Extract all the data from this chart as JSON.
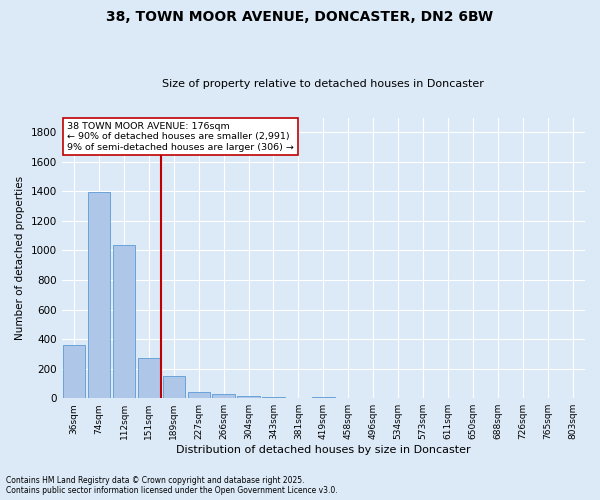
{
  "title_line1": "38, TOWN MOOR AVENUE, DONCASTER, DN2 6BW",
  "title_line2": "Size of property relative to detached houses in Doncaster",
  "xlabel": "Distribution of detached houses by size in Doncaster",
  "ylabel": "Number of detached properties",
  "categories": [
    "36sqm",
    "74sqm",
    "112sqm",
    "151sqm",
    "189sqm",
    "227sqm",
    "266sqm",
    "304sqm",
    "343sqm",
    "381sqm",
    "419sqm",
    "458sqm",
    "496sqm",
    "534sqm",
    "573sqm",
    "611sqm",
    "650sqm",
    "688sqm",
    "726sqm",
    "765sqm",
    "803sqm"
  ],
  "values": [
    360,
    1395,
    1035,
    270,
    148,
    42,
    30,
    18,
    10,
    0,
    10,
    0,
    0,
    0,
    0,
    0,
    0,
    0,
    0,
    0,
    0
  ],
  "bar_color": "#aec6e8",
  "bar_edge_color": "#5b9bd5",
  "vline_color": "#c00000",
  "annotation_text": "38 TOWN MOOR AVENUE: 176sqm\n← 90% of detached houses are smaller (2,991)\n9% of semi-detached houses are larger (306) →",
  "annotation_box_color": "#ffffff",
  "annotation_box_edge": "#c00000",
  "ylim": [
    0,
    1900
  ],
  "yticks": [
    0,
    200,
    400,
    600,
    800,
    1000,
    1200,
    1400,
    1600,
    1800
  ],
  "background_color": "#dce9f7",
  "grid_color": "#ffffff",
  "footnote1": "Contains HM Land Registry data © Crown copyright and database right 2025.",
  "footnote2": "Contains public sector information licensed under the Open Government Licence v3.0."
}
